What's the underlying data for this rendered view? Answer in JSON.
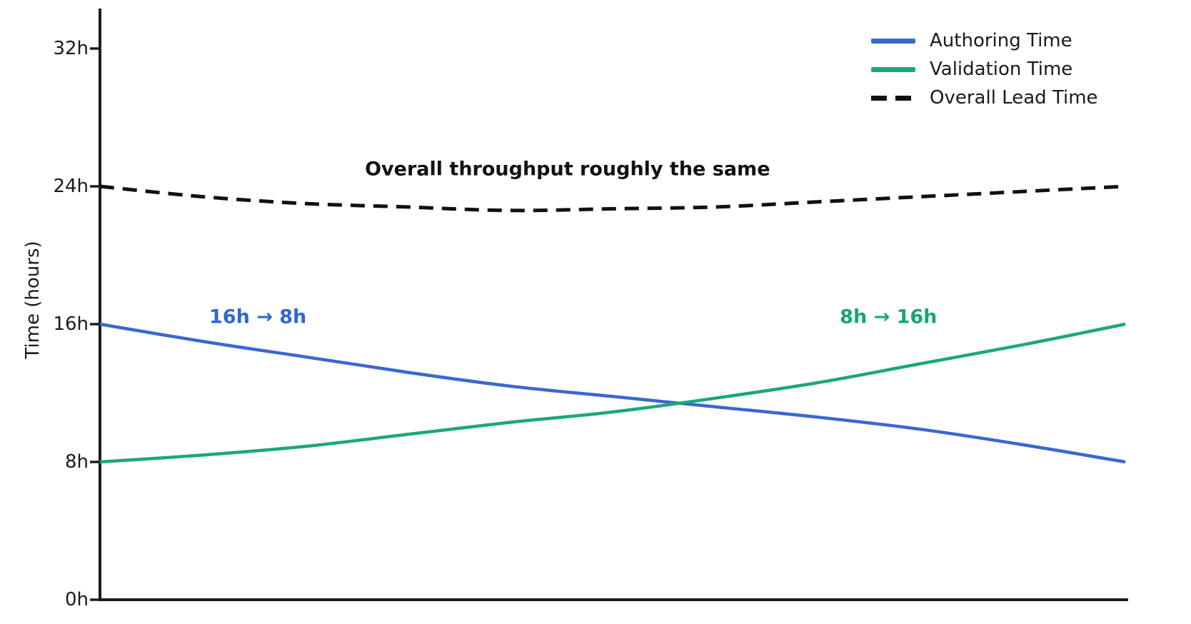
{
  "page": {
    "background": "#ffffff",
    "axis_color": "#1c1c1c"
  },
  "chart_data": {
    "type": "line",
    "title": "",
    "xlabel": "",
    "ylabel": "Time (hours)",
    "ylim": [
      0,
      32
    ],
    "x_range": [
      0,
      1
    ],
    "x_ticks_visible": false,
    "grid": false,
    "legend": {
      "position": "upper-right",
      "frame": false
    },
    "yticks": [
      {
        "value": 0,
        "label": "0h"
      },
      {
        "value": 8,
        "label": "8h"
      },
      {
        "value": 16,
        "label": "16h"
      },
      {
        "value": 24,
        "label": "24h"
      },
      {
        "value": 32,
        "label": "32h"
      }
    ],
    "x": [
      0,
      0.1,
      0.2,
      0.3,
      0.4,
      0.5,
      0.6,
      0.7,
      0.8,
      0.9,
      1.0
    ],
    "series": [
      {
        "name": "Overall Lead Time",
        "color": "#111111",
        "style": "dashed",
        "values": [
          24,
          23.4,
          23.0,
          22.8,
          22.6,
          22.7,
          22.8,
          23.1,
          23.4,
          23.7,
          24.0
        ]
      },
      {
        "name": "Authoring Time",
        "color": "#3a67d1",
        "style": "solid",
        "values": [
          16,
          15.0,
          14.1,
          13.2,
          12.4,
          11.8,
          11.2,
          10.6,
          9.9,
          9.0,
          8.0
        ]
      },
      {
        "name": "Validation Time",
        "color": "#1ca878",
        "style": "solid",
        "values": [
          8,
          8.4,
          8.9,
          9.6,
          10.3,
          10.9,
          11.7,
          12.6,
          13.7,
          14.8,
          16.0
        ]
      }
    ],
    "legend_order": [
      "Authoring Time",
      "Validation Time",
      "Overall Lead Time"
    ],
    "annotations": [
      {
        "name": "annotation-authoring-change",
        "text": "16h → 8h",
        "color": "#2e68cf",
        "x": 0.154,
        "y": 16.4
      },
      {
        "name": "annotation-validation-change",
        "text": "8h → 16h",
        "color": "#18a477",
        "x": 0.769,
        "y": 16.4
      },
      {
        "name": "annotation-throughput",
        "text": "Overall throughput roughly the same",
        "color": "#111111",
        "x": 0.456,
        "y": 25.0
      }
    ]
  }
}
